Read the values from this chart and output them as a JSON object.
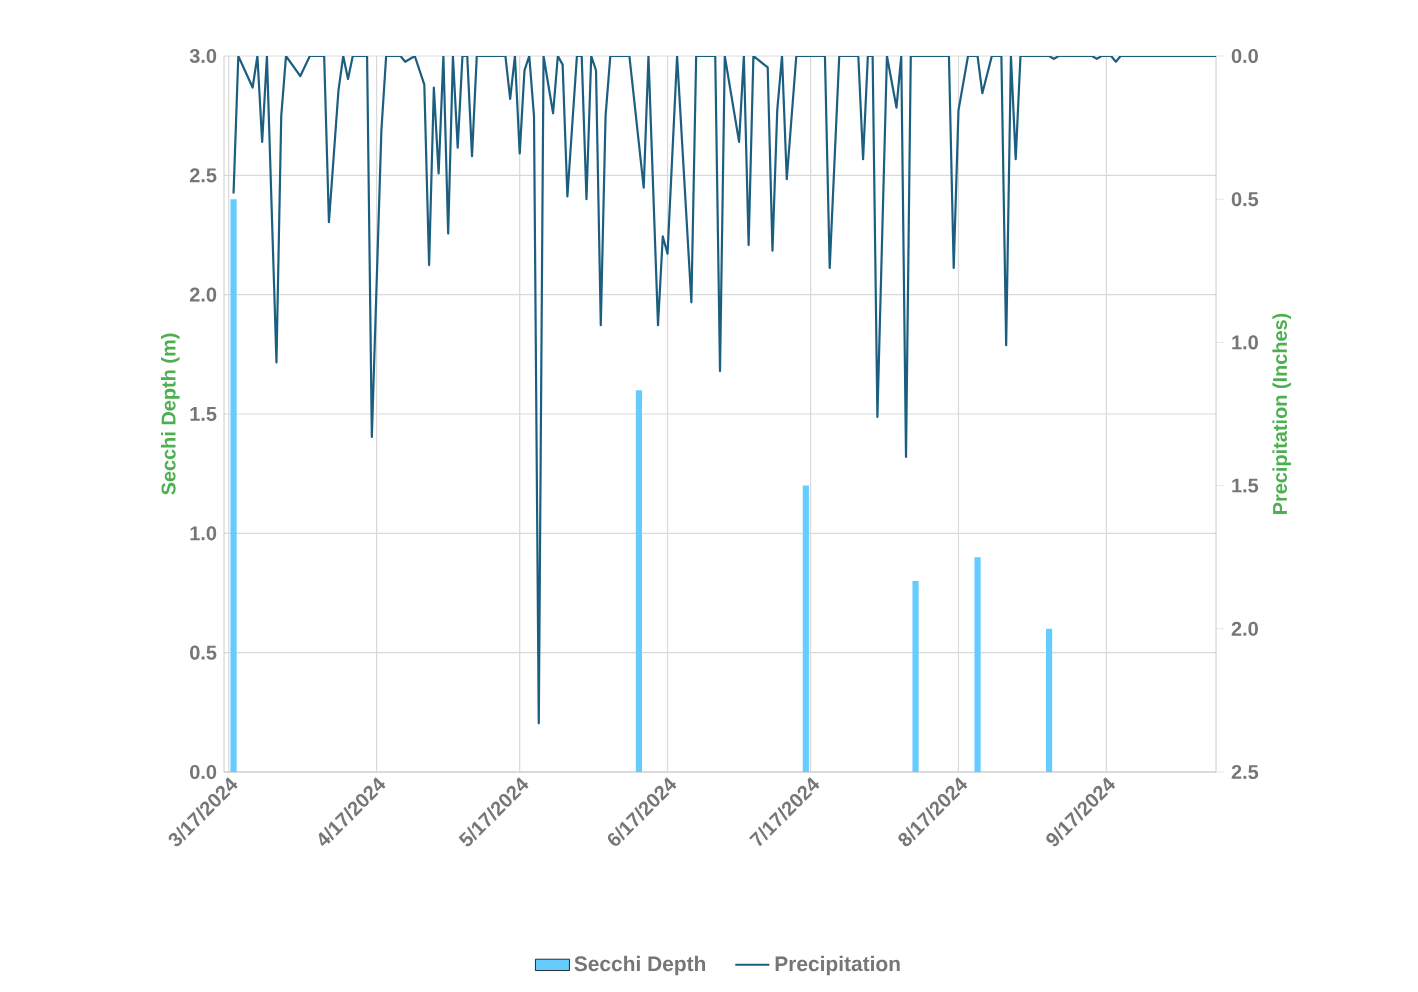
{
  "chart_data": {
    "type": "bar",
    "ylabel": "Secchi Depth (m)",
    "y2label": "Precipitation (Inches)",
    "xlim": [
      "2024-03-16",
      "2024-10-10"
    ],
    "xticks": [
      {
        "value": "2024-03-17",
        "label": "3/17/2024"
      },
      {
        "value": "2024-04-17",
        "label": "4/17/2024"
      },
      {
        "value": "2024-05-17",
        "label": "5/17/2024"
      },
      {
        "value": "2024-06-17",
        "label": "6/17/2024"
      },
      {
        "value": "2024-07-17",
        "label": "7/17/2024"
      },
      {
        "value": "2024-08-17",
        "label": "8/17/2024"
      },
      {
        "value": "2024-09-17",
        "label": "9/17/2024"
      }
    ],
    "ylim": [
      0,
      3
    ],
    "yticks": [
      {
        "value": 0,
        "label": "0.0"
      },
      {
        "value": 0.5,
        "label": "0.5"
      },
      {
        "value": 1,
        "label": "1.0"
      },
      {
        "value": 1.5,
        "label": "1.5"
      },
      {
        "value": 2,
        "label": "2.0"
      },
      {
        "value": 2.5,
        "label": "2.5"
      },
      {
        "value": 3,
        "label": "3.0"
      }
    ],
    "y2lim": [
      2.5,
      0
    ],
    "y2ticks": [
      {
        "value": 0,
        "label": "0.0"
      },
      {
        "value": 0.5,
        "label": "0.5"
      },
      {
        "value": 1,
        "label": "1.0"
      },
      {
        "value": 1.5,
        "label": "1.5"
      },
      {
        "value": 2,
        "label": "2.0"
      },
      {
        "value": 2.5,
        "label": "2.5"
      }
    ],
    "grid": true,
    "legend": "bottom",
    "series": [
      {
        "name": "Secchi Depth",
        "color": "#66ccff",
        "x": [
          "2024-03-18",
          "2024-06-11",
          "2024-07-16",
          "2024-08-08",
          "2024-08-21",
          "2024-09-05"
        ],
        "values": [
          2.4,
          1.6,
          1.2,
          0.8,
          0.9,
          0.6
        ]
      },
      {
        "name": "Precipitation",
        "type": "line",
        "axis": "y2",
        "color": "#1b5e80",
        "x": [
          "2024-03-18",
          "2024-03-19",
          "2024-03-22",
          "2024-03-23",
          "2024-03-24",
          "2024-03-25",
          "2024-03-27",
          "2024-03-28",
          "2024-03-29",
          "2024-04-01",
          "2024-04-03",
          "2024-04-06",
          "2024-04-07",
          "2024-04-09",
          "2024-04-10",
          "2024-04-11",
          "2024-04-12",
          "2024-04-15",
          "2024-04-16",
          "2024-04-18",
          "2024-04-19",
          "2024-04-22",
          "2024-04-23",
          "2024-04-25",
          "2024-04-27",
          "2024-04-28",
          "2024-04-29",
          "2024-04-30",
          "2024-05-01",
          "2024-05-02",
          "2024-05-03",
          "2024-05-04",
          "2024-05-05",
          "2024-05-06",
          "2024-05-07",
          "2024-05-08",
          "2024-05-14",
          "2024-05-15",
          "2024-05-16",
          "2024-05-17",
          "2024-05-18",
          "2024-05-19",
          "2024-05-20",
          "2024-05-21",
          "2024-05-22",
          "2024-05-24",
          "2024-05-25",
          "2024-05-26",
          "2024-05-27",
          "2024-05-29",
          "2024-05-30",
          "2024-05-31",
          "2024-06-01",
          "2024-06-02",
          "2024-06-03",
          "2024-06-04",
          "2024-06-05",
          "2024-06-09",
          "2024-06-12",
          "2024-06-13",
          "2024-06-15",
          "2024-06-16",
          "2024-06-17",
          "2024-06-19",
          "2024-06-22",
          "2024-06-23",
          "2024-06-27",
          "2024-06-28",
          "2024-06-29",
          "2024-07-02",
          "2024-07-03",
          "2024-07-04",
          "2024-07-05",
          "2024-07-08",
          "2024-07-09",
          "2024-07-10",
          "2024-07-11",
          "2024-07-12",
          "2024-07-14",
          "2024-07-20",
          "2024-07-21",
          "2024-07-23",
          "2024-07-27",
          "2024-07-28",
          "2024-07-29",
          "2024-07-30",
          "2024-07-31",
          "2024-08-02",
          "2024-08-04",
          "2024-08-05",
          "2024-08-06",
          "2024-08-07",
          "2024-08-15",
          "2024-08-16",
          "2024-08-17",
          "2024-08-19",
          "2024-08-21",
          "2024-08-22",
          "2024-08-24",
          "2024-08-26",
          "2024-08-27",
          "2024-08-28",
          "2024-08-29",
          "2024-08-30",
          "2024-09-05",
          "2024-09-06",
          "2024-09-07",
          "2024-09-14",
          "2024-09-15",
          "2024-09-16",
          "2024-09-18",
          "2024-09-19",
          "2024-09-20",
          "2024-10-10"
        ],
        "values": [
          0.48,
          0,
          0.11,
          0,
          0.3,
          0,
          1.07,
          0.21,
          0,
          0.07,
          0,
          0,
          0.58,
          0.12,
          0,
          0.08,
          0,
          0,
          1.33,
          0.26,
          0,
          0,
          0.02,
          0,
          0.1,
          0.73,
          0.11,
          0.41,
          0,
          0.62,
          0,
          0.32,
          0,
          0,
          0.35,
          0,
          0,
          0.15,
          0,
          0.34,
          0.05,
          0,
          0.21,
          2.33,
          0,
          0.2,
          0,
          0.03,
          0.49,
          0,
          0,
          0.5,
          0,
          0.05,
          0.94,
          0.21,
          0,
          0,
          0.46,
          0,
          0.94,
          0.63,
          0.69,
          0,
          0.86,
          0,
          0,
          1.1,
          0,
          0.3,
          0,
          0.66,
          0,
          0.04,
          0.68,
          0.19,
          0,
          0.43,
          0,
          0,
          0.74,
          0,
          0,
          0.36,
          0,
          0,
          1.26,
          0,
          0.18,
          0,
          1.4,
          0,
          0,
          0.74,
          0.19,
          0,
          0,
          0.13,
          0,
          0,
          1.01,
          0,
          0.36,
          0,
          0,
          0.01,
          0,
          0,
          0.01,
          0,
          0,
          0.02,
          0,
          0
        ]
      }
    ]
  }
}
